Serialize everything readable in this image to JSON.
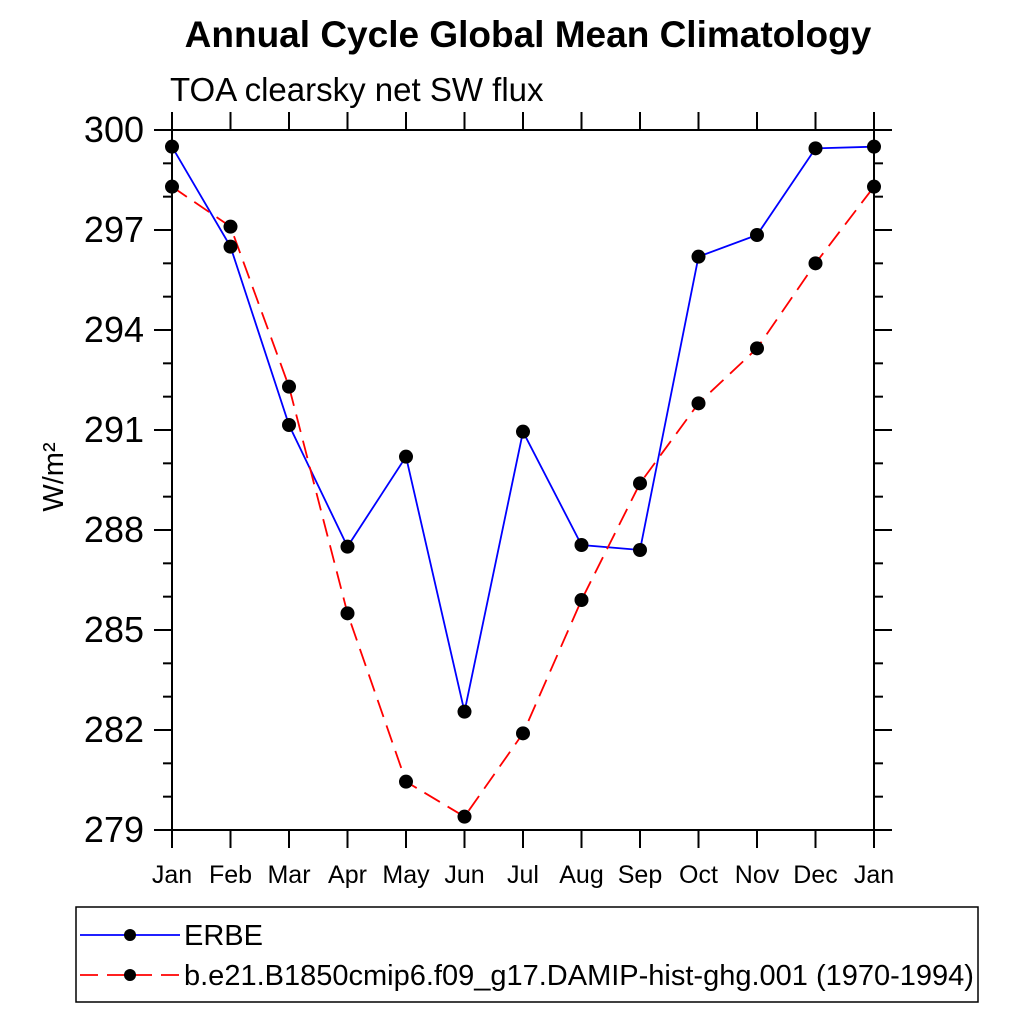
{
  "page": {
    "background": "#ffffff",
    "text_color": "#000000"
  },
  "chart_data": {
    "type": "line",
    "title": "Annual Cycle Global Mean Climatology",
    "subtitle": "TOA clearsky net SW flux",
    "xlabel": "",
    "ylabel": "W/m²",
    "categories": [
      "Jan",
      "Feb",
      "Mar",
      "Apr",
      "May",
      "Jun",
      "Jul",
      "Aug",
      "Sep",
      "Oct",
      "Nov",
      "Dec",
      "Jan"
    ],
    "ylim": [
      279,
      300
    ],
    "ytick_major": 3,
    "ytick_minor": 1,
    "yticks_labeled": [
      279,
      282,
      285,
      288,
      291,
      294,
      297,
      300
    ],
    "grid": false,
    "legend_position": "bottom",
    "axis_color": "#000000",
    "marker": {
      "shape": "circle",
      "color": "#000000",
      "radius": 7
    },
    "series": [
      {
        "name": "ERBE",
        "color": "#0000ff",
        "style": "solid",
        "values": [
          299.5,
          296.5,
          291.15,
          287.5,
          290.2,
          282.55,
          290.95,
          287.55,
          287.4,
          296.2,
          296.85,
          299.45,
          299.5
        ]
      },
      {
        "name": "b.e21.B1850cmip6.f09_g17.DAMIP-hist-ghg.001 (1970-1994)",
        "color": "#ff0000",
        "style": "dashed",
        "values": [
          298.3,
          297.1,
          292.3,
          285.5,
          280.45,
          279.4,
          281.9,
          285.9,
          289.4,
          291.8,
          293.45,
          296.0,
          298.3
        ]
      }
    ]
  }
}
